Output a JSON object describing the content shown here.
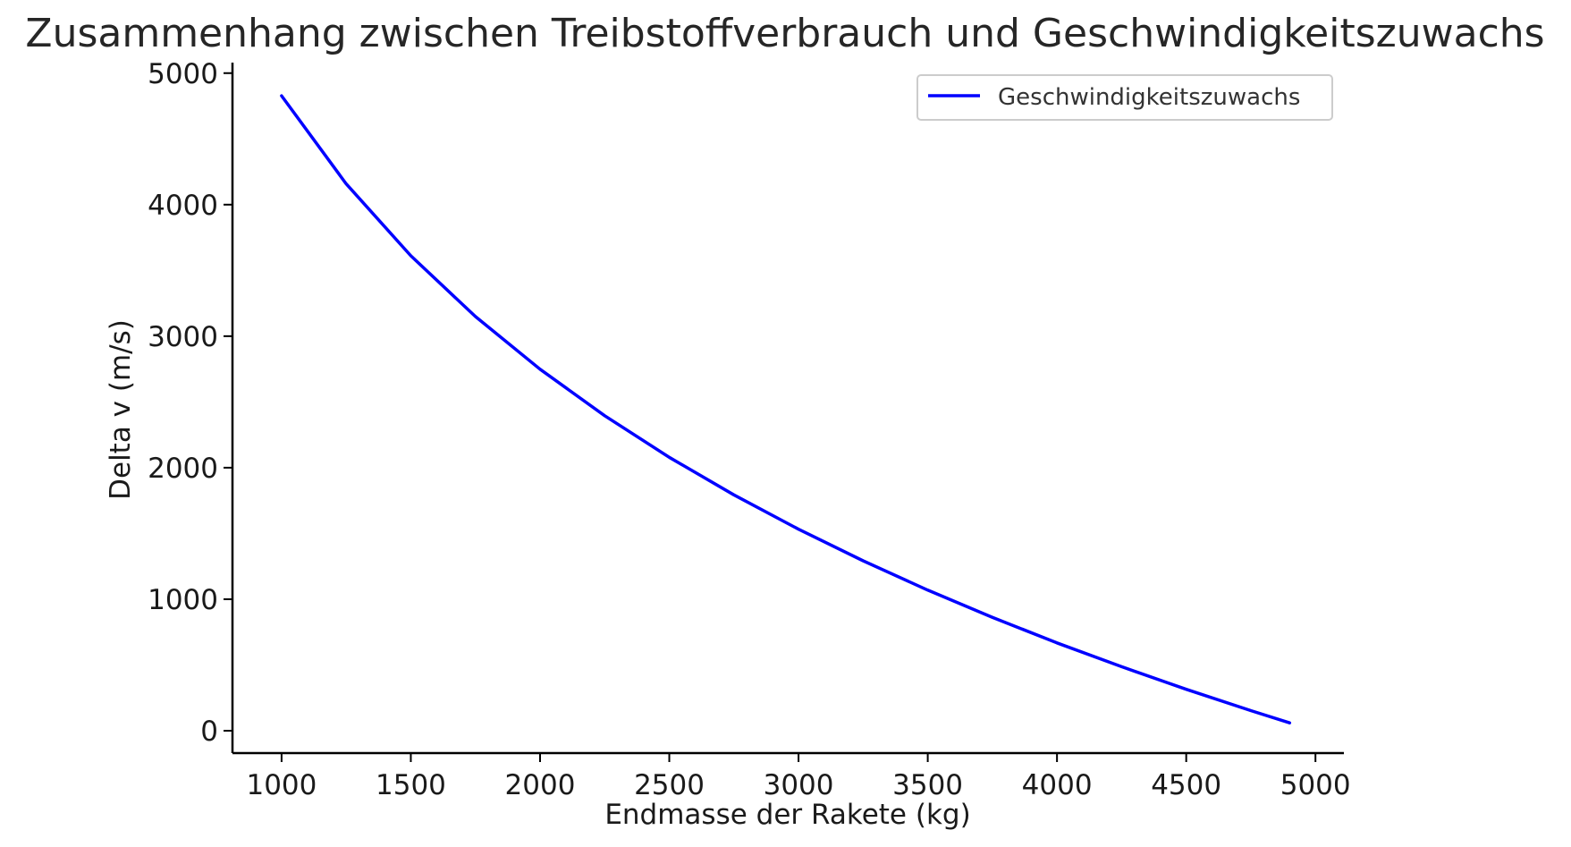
{
  "chart_data": {
    "type": "line",
    "title": "Zusammenhang zwischen Treibstoffverbrauch und Geschwindigkeitszuwachs",
    "xlabel": "Endmasse der Rakete (kg)",
    "ylabel": "Delta v (m/s)",
    "xlim": [
      810,
      5110
    ],
    "ylim": [
      -170,
      5080
    ],
    "xticks": [
      1000,
      1500,
      2000,
      2500,
      3000,
      3500,
      4000,
      4500,
      5000
    ],
    "yticks": [
      0,
      1000,
      2000,
      3000,
      4000,
      5000
    ],
    "grid": false,
    "legend_position": "top-right",
    "series": [
      {
        "name": "Geschwindigkeitszuwachs",
        "color": "#0000ff",
        "x": [
          1000,
          1250,
          1500,
          1750,
          2000,
          2250,
          2500,
          2750,
          3000,
          3250,
          3500,
          3750,
          4000,
          4250,
          4500,
          4750,
          4900
        ],
        "y": [
          4828,
          4158,
          3611,
          3149,
          2749,
          2395,
          2079,
          1793,
          1532,
          1292,
          1069,
          862,
          668,
          487,
          315,
          153,
          60
        ]
      }
    ]
  }
}
